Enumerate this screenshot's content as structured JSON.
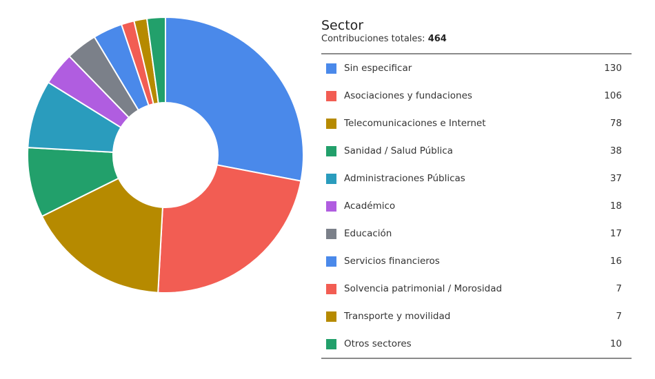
{
  "legend": {
    "title": "Sector",
    "subtitle_label": "Contribuciones totales:",
    "subtitle_total": "464"
  },
  "colors": {
    "blue": "#4a89ea",
    "red": "#f25d53",
    "gold": "#b68a00",
    "green": "#22a06b",
    "teal": "#2a9cbd",
    "purple": "#b05de0",
    "gray": "#7b8089"
  },
  "chart_data": {
    "type": "pie",
    "donut": true,
    "total": 464,
    "slices": [
      {
        "label": "Sin especificar",
        "value": 130,
        "color": "#4a89ea"
      },
      {
        "label": "Asociaciones y fundaciones",
        "value": 106,
        "color": "#f25d53"
      },
      {
        "label": "Telecomunicaciones e Internet",
        "value": 78,
        "color": "#b68a00"
      },
      {
        "label": "Sanidad / Salud Pública",
        "value": 38,
        "color": "#22a06b"
      },
      {
        "label": "Administraciones Públicas",
        "value": 37,
        "color": "#2a9cbd"
      },
      {
        "label": "Académico",
        "value": 18,
        "color": "#b05de0"
      },
      {
        "label": "Educación",
        "value": 17,
        "color": "#7b8089"
      },
      {
        "label": "Servicios financieros",
        "value": 16,
        "color": "#4a89ea"
      },
      {
        "label": "Solvencia patrimonial / Morosidad",
        "value": 7,
        "color": "#f25d53"
      },
      {
        "label": "Transporte y movilidad",
        "value": 7,
        "color": "#b68a00"
      },
      {
        "label": "Otros sectores",
        "value": 10,
        "color": "#22a06b"
      }
    ]
  }
}
